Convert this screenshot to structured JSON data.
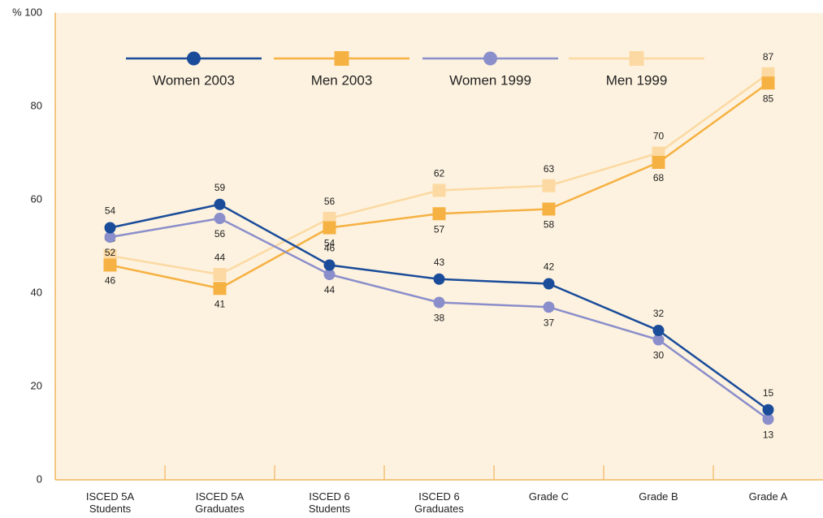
{
  "chart_data": {
    "type": "line",
    "categories": [
      "ISCED 5A Students",
      "ISCED 5A Graduates",
      "ISCED 6 Students",
      "ISCED 6 Graduates",
      "Grade C",
      "Grade B",
      "Grade A"
    ],
    "series": [
      {
        "name": "Women 2003",
        "color": "#1a4c9a",
        "marker": "circle",
        "values": [
          54,
          59,
          46,
          43,
          42,
          32,
          15
        ]
      },
      {
        "name": "Men 2003",
        "color": "#f6b143",
        "marker": "square",
        "values": [
          46,
          41,
          54,
          57,
          58,
          68,
          85
        ]
      },
      {
        "name": "Women 1999",
        "color": "#8a8ecb",
        "marker": "circle",
        "values": [
          52,
          56,
          44,
          38,
          37,
          30,
          13
        ]
      },
      {
        "name": "Men 1999",
        "color": "#fcd9a2",
        "marker": "square",
        "values": [
          48,
          44,
          56,
          62,
          63,
          70,
          87
        ]
      }
    ],
    "ylim": [
      0,
      100
    ],
    "yticks": [
      0,
      20,
      40,
      60,
      80,
      {
        "value": 100,
        "label": "% 100"
      }
    ],
    "legend": "top"
  }
}
